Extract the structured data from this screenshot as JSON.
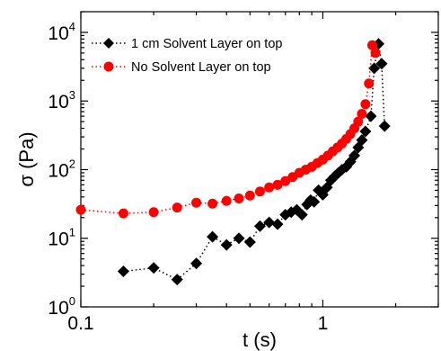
{
  "chart_data": {
    "type": "scatter",
    "xlabel": "t (s)",
    "ylabel": "σ (Pa)",
    "xscale": "log",
    "yscale": "log",
    "xlim": [
      0.1,
      3.0
    ],
    "ylim": [
      1,
      20000
    ],
    "grid": false,
    "legend_position": "top-left",
    "x_ticks": [
      {
        "value": 0.1,
        "label": "0.1"
      },
      {
        "value": 1,
        "label": "1"
      }
    ],
    "y_ticks": [
      {
        "value": 1,
        "base": "10",
        "exp": "0"
      },
      {
        "value": 10,
        "base": "10",
        "exp": "1"
      },
      {
        "value": 100,
        "base": "10",
        "exp": "2"
      },
      {
        "value": 1000,
        "base": "10",
        "exp": "3"
      },
      {
        "value": 10000,
        "base": "10",
        "exp": "4"
      }
    ],
    "series": [
      {
        "name": "1 cm Solvent Layer on top",
        "color": "#000000",
        "marker": "diamond",
        "line": "dotted",
        "x": [
          0.15,
          0.2,
          0.25,
          0.3,
          0.35,
          0.4,
          0.45,
          0.5,
          0.55,
          0.6,
          0.65,
          0.7,
          0.74,
          0.78,
          0.82,
          0.86,
          0.89,
          0.92,
          0.96,
          1.0,
          1.04,
          1.08,
          1.12,
          1.16,
          1.2,
          1.25,
          1.3,
          1.35,
          1.4,
          1.45,
          1.5,
          1.58,
          1.63,
          1.7,
          1.75,
          1.8
        ],
        "y": [
          3.3,
          3.7,
          2.5,
          4.3,
          10.5,
          8.0,
          10.0,
          8.8,
          15.0,
          17.0,
          16.0,
          22.0,
          24.0,
          26.0,
          22.0,
          31.0,
          36.0,
          34.0,
          50.0,
          43.0,
          55.0,
          70.0,
          80.0,
          90.0,
          100.0,
          110.0,
          130.0,
          160.0,
          210.0,
          270.0,
          360.0,
          600.0,
          3000.0,
          6800.0,
          3500.0,
          430.0
        ]
      },
      {
        "name": "No Solvent Layer on top",
        "color": "#ff0000",
        "marker": "circle",
        "line": "dotted",
        "x": [
          0.1,
          0.15,
          0.2,
          0.25,
          0.3,
          0.35,
          0.4,
          0.45,
          0.5,
          0.55,
          0.6,
          0.65,
          0.7,
          0.75,
          0.8,
          0.85,
          0.9,
          0.95,
          1.0,
          1.05,
          1.1,
          1.15,
          1.2,
          1.25,
          1.3,
          1.35,
          1.4,
          1.45,
          1.5,
          1.55,
          1.6,
          1.65
        ],
        "y": [
          26.0,
          23.0,
          24.0,
          28.0,
          33.0,
          32.0,
          35.0,
          38.0,
          42.0,
          48.0,
          55.0,
          60.0,
          68.0,
          78.0,
          90.0,
          100.0,
          110.0,
          125.0,
          140.0,
          160.0,
          185.0,
          210.0,
          240.0,
          280.0,
          330.0,
          400.0,
          500.0,
          650.0,
          900.0,
          1800.0,
          6500.0,
          5000.0
        ]
      }
    ]
  }
}
